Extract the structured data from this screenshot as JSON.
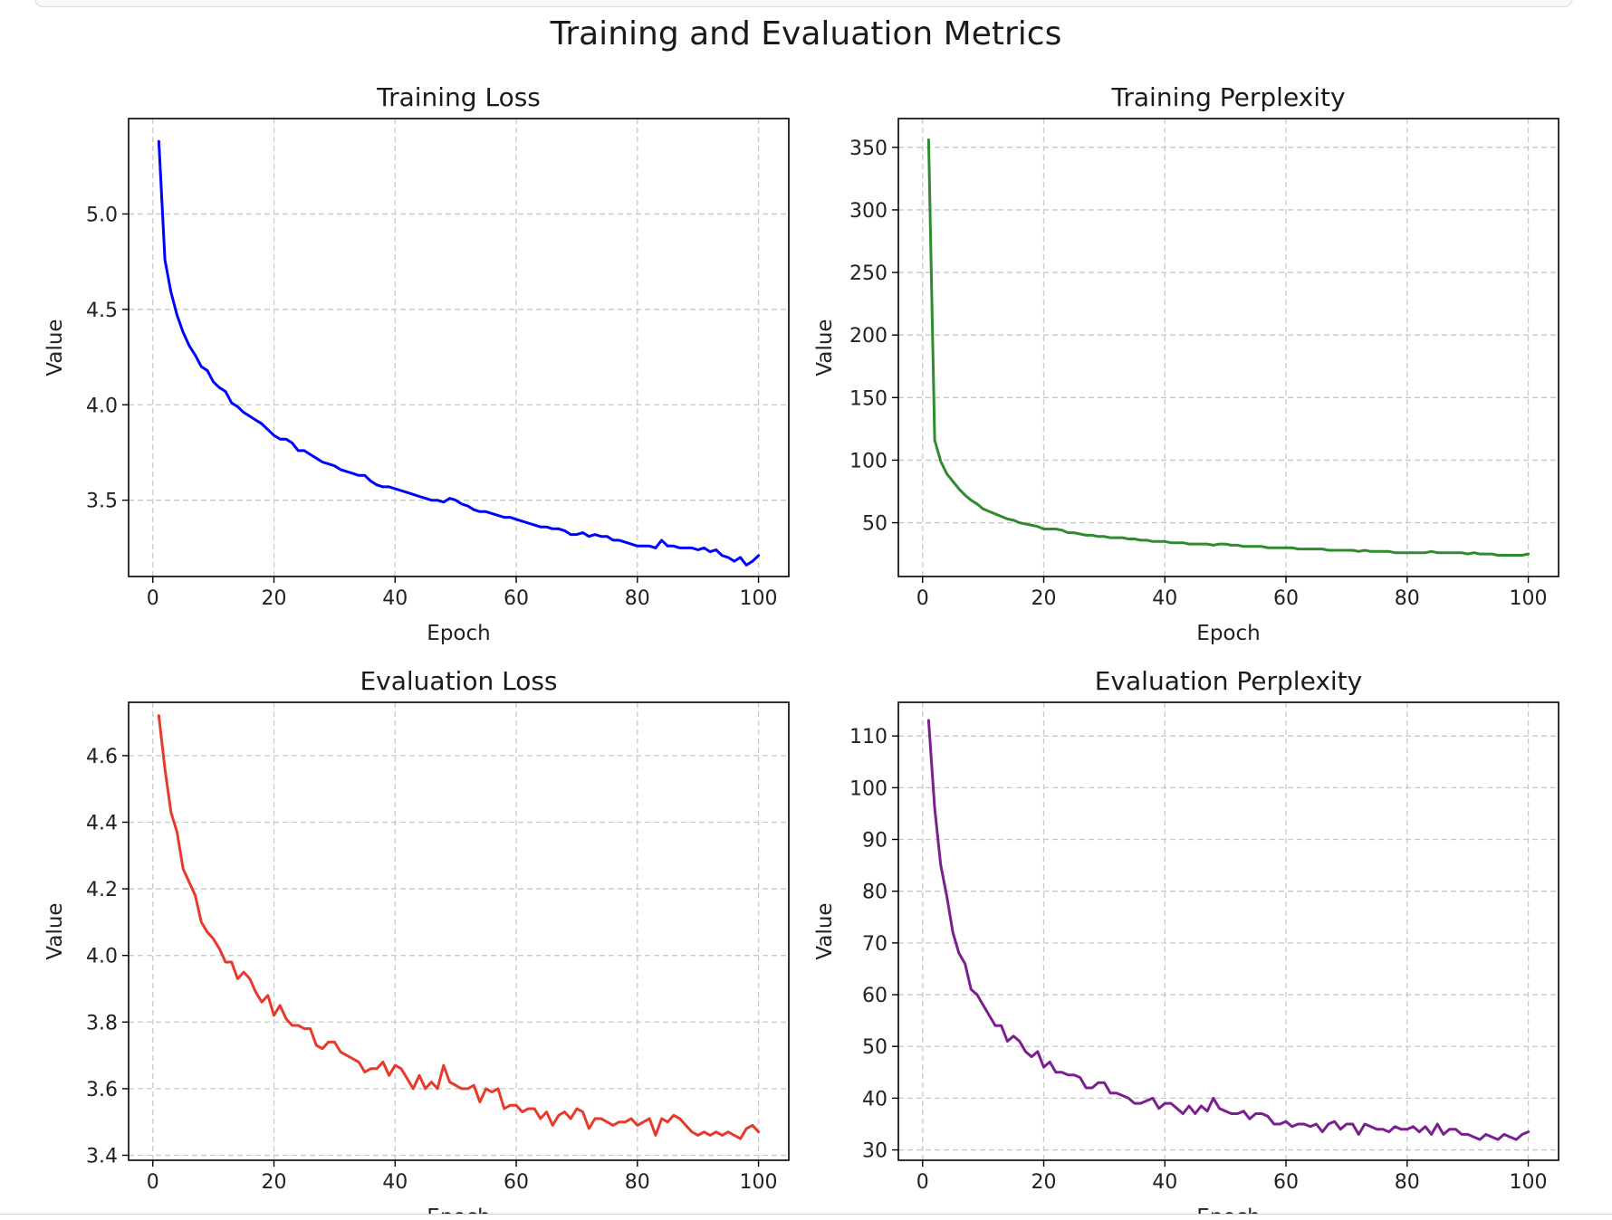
{
  "figure": {
    "suptitle": "Training and Evaluation Metrics"
  },
  "chart_data": [
    {
      "type": "line",
      "title": "Training Loss",
      "xlabel": "Epoch",
      "ylabel": "Value",
      "xlim": [
        -4,
        105
      ],
      "ylim": [
        3.1,
        5.5
      ],
      "xticks": [
        0,
        20,
        40,
        60,
        80,
        100
      ],
      "yticks": [
        3.5,
        4.0,
        4.5,
        5.0
      ],
      "grid": true,
      "series": [
        {
          "color": "#0000ff",
          "x": [
            1,
            2,
            3,
            4,
            5,
            6,
            7,
            8,
            9,
            10,
            11,
            12,
            13,
            14,
            15,
            16,
            17,
            18,
            19,
            20,
            21,
            22,
            23,
            24,
            25,
            26,
            27,
            28,
            29,
            30,
            31,
            32,
            33,
            34,
            35,
            36,
            37,
            38,
            39,
            40,
            41,
            42,
            43,
            44,
            45,
            46,
            47,
            48,
            49,
            50,
            51,
            52,
            53,
            54,
            55,
            56,
            57,
            58,
            59,
            60,
            61,
            62,
            63,
            64,
            65,
            66,
            67,
            68,
            69,
            70,
            71,
            72,
            73,
            74,
            75,
            76,
            77,
            78,
            79,
            80,
            81,
            82,
            83,
            84,
            85,
            86,
            87,
            88,
            89,
            90,
            91,
            92,
            93,
            94,
            95,
            96,
            97,
            98,
            99,
            100
          ],
          "values": [
            5.38,
            4.76,
            4.59,
            4.47,
            4.38,
            4.31,
            4.26,
            4.2,
            4.18,
            4.12,
            4.09,
            4.07,
            4.01,
            3.99,
            3.96,
            3.94,
            3.92,
            3.9,
            3.87,
            3.84,
            3.82,
            3.82,
            3.8,
            3.76,
            3.76,
            3.74,
            3.72,
            3.7,
            3.69,
            3.68,
            3.66,
            3.65,
            3.64,
            3.63,
            3.63,
            3.6,
            3.58,
            3.57,
            3.57,
            3.56,
            3.55,
            3.54,
            3.53,
            3.52,
            3.51,
            3.5,
            3.5,
            3.49,
            3.51,
            3.5,
            3.48,
            3.47,
            3.45,
            3.44,
            3.44,
            3.43,
            3.42,
            3.41,
            3.41,
            3.4,
            3.39,
            3.38,
            3.37,
            3.36,
            3.36,
            3.35,
            3.35,
            3.34,
            3.32,
            3.32,
            3.33,
            3.31,
            3.32,
            3.31,
            3.31,
            3.29,
            3.29,
            3.28,
            3.27,
            3.26,
            3.26,
            3.26,
            3.25,
            3.29,
            3.26,
            3.26,
            3.25,
            3.25,
            3.25,
            3.24,
            3.25,
            3.23,
            3.24,
            3.21,
            3.2,
            3.18,
            3.2,
            3.16,
            3.18,
            3.21
          ]
        }
      ]
    },
    {
      "type": "line",
      "title": "Training Perplexity",
      "xlabel": "Epoch",
      "ylabel": "Value",
      "xlim": [
        -4,
        105
      ],
      "ylim": [
        7,
        373
      ],
      "xticks": [
        0,
        20,
        40,
        60,
        80,
        100
      ],
      "yticks": [
        50,
        100,
        150,
        200,
        250,
        300,
        350
      ],
      "grid": true,
      "series": [
        {
          "color": "#2e8b2e",
          "x": [
            1,
            2,
            3,
            4,
            5,
            6,
            7,
            8,
            9,
            10,
            11,
            12,
            13,
            14,
            15,
            16,
            17,
            18,
            19,
            20,
            21,
            22,
            23,
            24,
            25,
            26,
            27,
            28,
            29,
            30,
            31,
            32,
            33,
            34,
            35,
            36,
            37,
            38,
            39,
            40,
            41,
            42,
            43,
            44,
            45,
            46,
            47,
            48,
            49,
            50,
            51,
            52,
            53,
            54,
            55,
            56,
            57,
            58,
            59,
            60,
            61,
            62,
            63,
            64,
            65,
            66,
            67,
            68,
            69,
            70,
            71,
            72,
            73,
            74,
            75,
            76,
            77,
            78,
            79,
            80,
            81,
            82,
            83,
            84,
            85,
            86,
            87,
            88,
            89,
            90,
            91,
            92,
            93,
            94,
            95,
            96,
            97,
            98,
            99,
            100
          ],
          "values": [
            356,
            116,
            99,
            89,
            83,
            77,
            72,
            68,
            65,
            61,
            59,
            57,
            55,
            53,
            52,
            50,
            49,
            48,
            47,
            45,
            45,
            45,
            44,
            42,
            42,
            41,
            40,
            40,
            39,
            39,
            38,
            38,
            38,
            37,
            37,
            36,
            36,
            35,
            35,
            35,
            34,
            34,
            34,
            33,
            33,
            33,
            33,
            32,
            33,
            33,
            32,
            32,
            31,
            31,
            31,
            31,
            30,
            30,
            30,
            30,
            30,
            29,
            29,
            29,
            29,
            29,
            28,
            28,
            28,
            28,
            28,
            27,
            28,
            27,
            27,
            27,
            27,
            26,
            26,
            26,
            26,
            26,
            26,
            27,
            26,
            26,
            26,
            26,
            26,
            25,
            26,
            25,
            25,
            25,
            24,
            24,
            24,
            24,
            24,
            25
          ]
        }
      ]
    },
    {
      "type": "line",
      "title": "Evaluation Loss",
      "xlabel": "Epoch",
      "ylabel": "Value",
      "xlim": [
        -4,
        105
      ],
      "ylim": [
        3.385,
        4.76
      ],
      "xticks": [
        0,
        20,
        40,
        60,
        80,
        100
      ],
      "yticks": [
        3.4,
        3.6,
        3.8,
        4.0,
        4.2,
        4.4,
        4.6
      ],
      "grid": true,
      "series": [
        {
          "color": "#e8392b",
          "x": [
            1,
            2,
            3,
            4,
            5,
            6,
            7,
            8,
            9,
            10,
            11,
            12,
            13,
            14,
            15,
            16,
            17,
            18,
            19,
            20,
            21,
            22,
            23,
            24,
            25,
            26,
            27,
            28,
            29,
            30,
            31,
            32,
            33,
            34,
            35,
            36,
            37,
            38,
            39,
            40,
            41,
            42,
            43,
            44,
            45,
            46,
            47,
            48,
            49,
            50,
            51,
            52,
            53,
            54,
            55,
            56,
            57,
            58,
            59,
            60,
            61,
            62,
            63,
            64,
            65,
            66,
            67,
            68,
            69,
            70,
            71,
            72,
            73,
            74,
            75,
            76,
            77,
            78,
            79,
            80,
            81,
            82,
            83,
            84,
            85,
            86,
            87,
            88,
            89,
            90,
            91,
            92,
            93,
            94,
            95,
            96,
            97,
            98,
            99,
            100
          ],
          "values": [
            4.72,
            4.56,
            4.43,
            4.37,
            4.26,
            4.22,
            4.18,
            4.1,
            4.07,
            4.05,
            4.02,
            3.98,
            3.98,
            3.93,
            3.95,
            3.93,
            3.89,
            3.86,
            3.88,
            3.82,
            3.85,
            3.81,
            3.79,
            3.79,
            3.78,
            3.78,
            3.73,
            3.72,
            3.74,
            3.74,
            3.71,
            3.7,
            3.69,
            3.68,
            3.65,
            3.66,
            3.66,
            3.68,
            3.64,
            3.67,
            3.66,
            3.63,
            3.6,
            3.64,
            3.6,
            3.62,
            3.6,
            3.67,
            3.62,
            3.61,
            3.6,
            3.6,
            3.61,
            3.56,
            3.6,
            3.59,
            3.6,
            3.54,
            3.55,
            3.55,
            3.53,
            3.54,
            3.54,
            3.51,
            3.53,
            3.49,
            3.52,
            3.53,
            3.51,
            3.54,
            3.53,
            3.48,
            3.51,
            3.51,
            3.5,
            3.49,
            3.5,
            3.5,
            3.51,
            3.49,
            3.5,
            3.51,
            3.46,
            3.51,
            3.5,
            3.52,
            3.51,
            3.49,
            3.47,
            3.46,
            3.47,
            3.46,
            3.47,
            3.46,
            3.47,
            3.46,
            3.45,
            3.48,
            3.49,
            3.47
          ]
        }
      ]
    },
    {
      "type": "line",
      "title": "Evaluation Perplexity",
      "xlabel": "Epoch",
      "ylabel": "Value",
      "xlim": [
        -4,
        105
      ],
      "ylim": [
        28,
        116.5
      ],
      "xticks": [
        0,
        20,
        40,
        60,
        80,
        100
      ],
      "yticks": [
        30,
        40,
        50,
        60,
        70,
        80,
        90,
        100,
        110
      ],
      "grid": true,
      "series": [
        {
          "color": "#7b1f8e",
          "x": [
            1,
            2,
            3,
            4,
            5,
            6,
            7,
            8,
            9,
            10,
            11,
            12,
            13,
            14,
            15,
            16,
            17,
            18,
            19,
            20,
            21,
            22,
            23,
            24,
            25,
            26,
            27,
            28,
            29,
            30,
            31,
            32,
            33,
            34,
            35,
            36,
            37,
            38,
            39,
            40,
            41,
            42,
            43,
            44,
            45,
            46,
            47,
            48,
            49,
            50,
            51,
            52,
            53,
            54,
            55,
            56,
            57,
            58,
            59,
            60,
            61,
            62,
            63,
            64,
            65,
            66,
            67,
            68,
            69,
            70,
            71,
            72,
            73,
            74,
            75,
            76,
            77,
            78,
            79,
            80,
            81,
            82,
            83,
            84,
            85,
            86,
            87,
            88,
            89,
            90,
            91,
            92,
            93,
            94,
            95,
            96,
            97,
            98,
            99,
            100
          ],
          "values": [
            113,
            96,
            85,
            79,
            72,
            68,
            66,
            61,
            60,
            58,
            56,
            54,
            54,
            51,
            52,
            51,
            49,
            48,
            49,
            46,
            47,
            45,
            45,
            44.5,
            44.5,
            44,
            42,
            42,
            43,
            43,
            41,
            41,
            40.5,
            40,
            39,
            39,
            39.5,
            40,
            38,
            39,
            39,
            38,
            37,
            38.5,
            37,
            38.5,
            37.5,
            40,
            38,
            37.5,
            37,
            37,
            37.5,
            36,
            37,
            37,
            36.5,
            35,
            35,
            35.5,
            34.5,
            35,
            35,
            34.5,
            35,
            33.5,
            35,
            35.5,
            34,
            35,
            35,
            33,
            35,
            34.5,
            34,
            34,
            33.5,
            34.5,
            34,
            34,
            34.5,
            33.5,
            34.5,
            33,
            35,
            33,
            34,
            34,
            33,
            33,
            32.5,
            32,
            33,
            32.5,
            32,
            33,
            32.5,
            32,
            33,
            33.5
          ]
        }
      ]
    }
  ]
}
